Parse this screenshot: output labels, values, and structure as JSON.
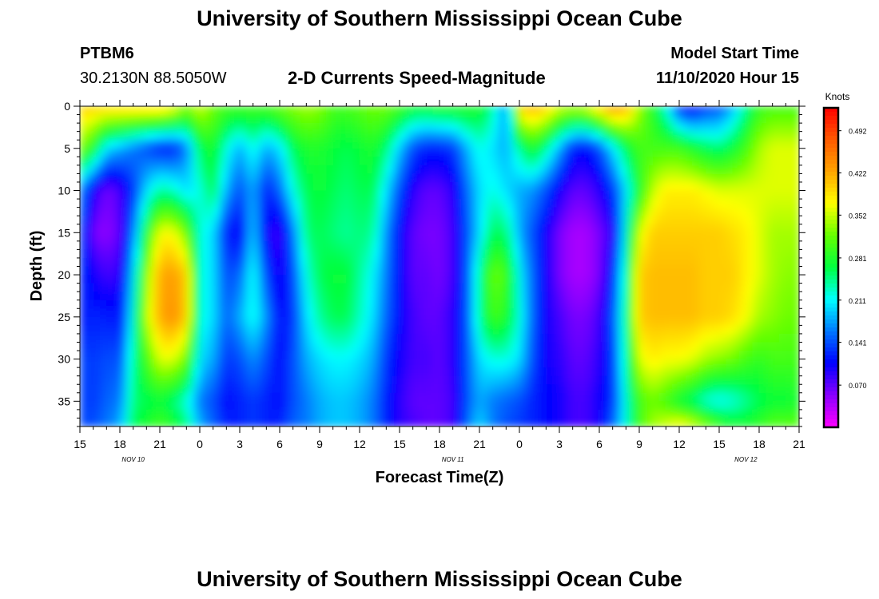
{
  "header": {
    "title_top": "University of Southern Mississippi Ocean Cube",
    "title_bottom": "University of Southern Mississippi Ocean Cube",
    "station": "PTBM6",
    "coords": "30.2130N 88.5050W",
    "subtitle": "2-D Currents Speed-Magnitude",
    "model_label": "Model Start Time",
    "model_time": "11/10/2020 Hour 15"
  },
  "chart_data": {
    "type": "heatmap",
    "title": "2-D Currents Speed-Magnitude",
    "xlabel": "Forecast Time(Z)",
    "ylabel": "Depth (ft)",
    "x_ticks": [
      "15",
      "18",
      "21",
      "0",
      "3",
      "6",
      "9",
      "12",
      "15",
      "18",
      "21",
      "0",
      "3",
      "6",
      "9",
      "12",
      "15",
      "18",
      "21"
    ],
    "x_start_hour": 15,
    "x_end_hour": 69,
    "date_labels": [
      {
        "label": "NOV 10",
        "hour": 19
      },
      {
        "label": "NOV 11",
        "hour": 43
      },
      {
        "label": "NOV 12",
        "hour": 65
      }
    ],
    "y_ticks": [
      "0",
      "5",
      "10",
      "15",
      "20",
      "25",
      "30",
      "35"
    ],
    "ylim": [
      0,
      38
    ],
    "y_inverted": true,
    "colorbar": {
      "title": "Knots",
      "range": [
        0.0,
        0.53
      ],
      "tick_values": [
        "0.492",
        "0.422",
        "0.352",
        "0.281",
        "0.211",
        "0.141",
        "0.070"
      ],
      "colors": [
        "#ff00ff",
        "#8a00ff",
        "#0000ff",
        "#0077ff",
        "#00ffff",
        "#00ff40",
        "#66ff00",
        "#ffff00",
        "#ffa500",
        "#ff5a00",
        "#ff0000"
      ]
    },
    "depth_profiles_ft": [
      0,
      5,
      10,
      15,
      20,
      25,
      30,
      35,
      38
    ],
    "times_hour": [
      15,
      16,
      17,
      18,
      19,
      20,
      21,
      22,
      23,
      24,
      25,
      26,
      27,
      28,
      29,
      30,
      31,
      32,
      33,
      34,
      35,
      36,
      37,
      38,
      39,
      40,
      41,
      42,
      43,
      44,
      45,
      46,
      47,
      48,
      49,
      50,
      51,
      52,
      53,
      54,
      55,
      56,
      57,
      58,
      59,
      60,
      61,
      62,
      63,
      64,
      65,
      66,
      67,
      68,
      69
    ],
    "values_knots": [
      [
        0.4,
        0.33,
        0.17,
        0.15,
        0.13,
        0.12,
        0.14,
        0.14,
        0.14
      ],
      [
        0.4,
        0.28,
        0.1,
        0.06,
        0.1,
        0.12,
        0.13,
        0.13,
        0.14
      ],
      [
        0.4,
        0.2,
        0.06,
        0.05,
        0.08,
        0.12,
        0.14,
        0.15,
        0.16
      ],
      [
        0.4,
        0.18,
        0.08,
        0.07,
        0.09,
        0.11,
        0.14,
        0.16,
        0.18
      ],
      [
        0.4,
        0.16,
        0.13,
        0.16,
        0.2,
        0.22,
        0.24,
        0.25,
        0.26
      ],
      [
        0.4,
        0.14,
        0.2,
        0.28,
        0.33,
        0.35,
        0.3,
        0.26,
        0.28
      ],
      [
        0.4,
        0.12,
        0.24,
        0.37,
        0.42,
        0.42,
        0.36,
        0.27,
        0.3
      ],
      [
        0.38,
        0.12,
        0.23,
        0.37,
        0.43,
        0.44,
        0.36,
        0.25,
        0.28
      ],
      [
        0.33,
        0.16,
        0.2,
        0.32,
        0.4,
        0.4,
        0.32,
        0.22,
        0.25
      ],
      [
        0.36,
        0.26,
        0.22,
        0.22,
        0.22,
        0.22,
        0.2,
        0.16,
        0.18
      ],
      [
        0.32,
        0.28,
        0.26,
        0.2,
        0.2,
        0.2,
        0.18,
        0.14,
        0.15
      ],
      [
        0.3,
        0.22,
        0.18,
        0.12,
        0.14,
        0.15,
        0.13,
        0.11,
        0.12
      ],
      [
        0.3,
        0.18,
        0.14,
        0.1,
        0.15,
        0.18,
        0.14,
        0.12,
        0.12
      ],
      [
        0.3,
        0.22,
        0.18,
        0.2,
        0.22,
        0.22,
        0.17,
        0.13,
        0.13
      ],
      [
        0.3,
        0.18,
        0.12,
        0.1,
        0.14,
        0.17,
        0.14,
        0.12,
        0.12
      ],
      [
        0.32,
        0.2,
        0.15,
        0.08,
        0.09,
        0.11,
        0.11,
        0.11,
        0.12
      ],
      [
        0.33,
        0.26,
        0.22,
        0.16,
        0.14,
        0.13,
        0.14,
        0.14,
        0.15
      ],
      [
        0.34,
        0.28,
        0.26,
        0.25,
        0.22,
        0.2,
        0.18,
        0.16,
        0.16
      ],
      [
        0.33,
        0.28,
        0.27,
        0.26,
        0.26,
        0.24,
        0.2,
        0.18,
        0.18
      ],
      [
        0.3,
        0.27,
        0.26,
        0.25,
        0.27,
        0.26,
        0.21,
        0.19,
        0.19
      ],
      [
        0.3,
        0.26,
        0.25,
        0.24,
        0.27,
        0.26,
        0.21,
        0.19,
        0.19
      ],
      [
        0.31,
        0.27,
        0.26,
        0.25,
        0.24,
        0.23,
        0.2,
        0.18,
        0.18
      ],
      [
        0.32,
        0.28,
        0.26,
        0.24,
        0.21,
        0.2,
        0.18,
        0.16,
        0.16
      ],
      [
        0.32,
        0.25,
        0.2,
        0.17,
        0.16,
        0.15,
        0.13,
        0.12,
        0.12
      ],
      [
        0.3,
        0.19,
        0.14,
        0.11,
        0.11,
        0.11,
        0.1,
        0.09,
        0.09
      ],
      [
        0.28,
        0.14,
        0.09,
        0.07,
        0.07,
        0.08,
        0.08,
        0.07,
        0.08
      ],
      [
        0.28,
        0.12,
        0.07,
        0.06,
        0.07,
        0.07,
        0.08,
        0.07,
        0.07
      ],
      [
        0.29,
        0.12,
        0.07,
        0.06,
        0.06,
        0.07,
        0.07,
        0.07,
        0.07
      ],
      [
        0.29,
        0.13,
        0.09,
        0.08,
        0.08,
        0.09,
        0.09,
        0.08,
        0.08
      ],
      [
        0.29,
        0.18,
        0.15,
        0.14,
        0.14,
        0.14,
        0.14,
        0.14,
        0.15
      ],
      [
        0.28,
        0.22,
        0.2,
        0.2,
        0.24,
        0.24,
        0.2,
        0.18,
        0.2
      ],
      [
        0.24,
        0.2,
        0.22,
        0.26,
        0.32,
        0.3,
        0.22,
        0.16,
        0.16
      ],
      [
        0.16,
        0.18,
        0.2,
        0.25,
        0.3,
        0.28,
        0.22,
        0.15,
        0.14
      ],
      [
        0.4,
        0.24,
        0.18,
        0.18,
        0.21,
        0.22,
        0.2,
        0.14,
        0.13
      ],
      [
        0.42,
        0.28,
        0.17,
        0.14,
        0.15,
        0.15,
        0.14,
        0.12,
        0.12
      ],
      [
        0.4,
        0.24,
        0.14,
        0.1,
        0.1,
        0.1,
        0.1,
        0.11,
        0.11
      ],
      [
        0.36,
        0.18,
        0.1,
        0.06,
        0.06,
        0.08,
        0.09,
        0.1,
        0.1
      ],
      [
        0.35,
        0.12,
        0.07,
        0.04,
        0.04,
        0.06,
        0.07,
        0.08,
        0.08
      ],
      [
        0.36,
        0.11,
        0.07,
        0.04,
        0.04,
        0.06,
        0.07,
        0.08,
        0.08
      ],
      [
        0.4,
        0.14,
        0.09,
        0.06,
        0.06,
        0.08,
        0.09,
        0.1,
        0.1
      ],
      [
        0.44,
        0.2,
        0.13,
        0.09,
        0.12,
        0.14,
        0.13,
        0.13,
        0.15
      ],
      [
        0.42,
        0.26,
        0.2,
        0.22,
        0.24,
        0.25,
        0.24,
        0.22,
        0.22
      ],
      [
        0.34,
        0.3,
        0.28,
        0.36,
        0.4,
        0.4,
        0.36,
        0.3,
        0.3
      ],
      [
        0.28,
        0.3,
        0.35,
        0.4,
        0.41,
        0.41,
        0.38,
        0.32,
        0.34
      ],
      [
        0.22,
        0.3,
        0.38,
        0.4,
        0.41,
        0.41,
        0.37,
        0.3,
        0.36
      ],
      [
        0.12,
        0.3,
        0.38,
        0.4,
        0.41,
        0.41,
        0.37,
        0.27,
        0.38
      ],
      [
        0.1,
        0.28,
        0.38,
        0.4,
        0.41,
        0.41,
        0.36,
        0.25,
        0.36
      ],
      [
        0.13,
        0.26,
        0.37,
        0.4,
        0.4,
        0.4,
        0.34,
        0.22,
        0.33
      ],
      [
        0.14,
        0.25,
        0.36,
        0.4,
        0.4,
        0.4,
        0.33,
        0.21,
        0.3
      ],
      [
        0.18,
        0.27,
        0.36,
        0.39,
        0.4,
        0.39,
        0.32,
        0.22,
        0.28
      ],
      [
        0.24,
        0.3,
        0.36,
        0.38,
        0.38,
        0.37,
        0.3,
        0.24,
        0.28
      ],
      [
        0.29,
        0.34,
        0.36,
        0.36,
        0.36,
        0.34,
        0.29,
        0.26,
        0.29
      ],
      [
        0.3,
        0.36,
        0.36,
        0.34,
        0.34,
        0.33,
        0.3,
        0.27,
        0.31
      ],
      [
        0.3,
        0.36,
        0.36,
        0.34,
        0.33,
        0.32,
        0.3,
        0.27,
        0.31
      ],
      [
        0.3,
        0.36,
        0.36,
        0.34,
        0.33,
        0.32,
        0.3,
        0.28,
        0.31
      ]
    ]
  }
}
